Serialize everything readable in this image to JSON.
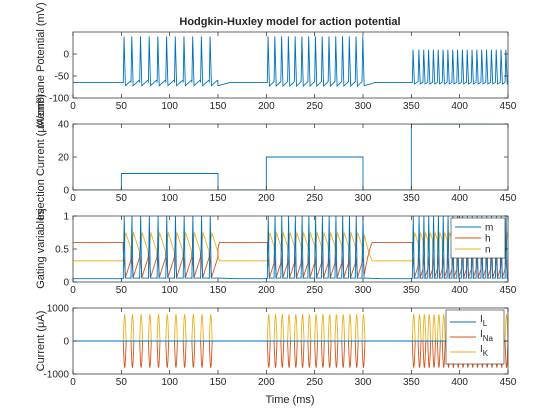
{
  "figure": {
    "title": "Hodgkin-Huxley model for action potential",
    "xlabel": "Time (ms)"
  },
  "colors": {
    "blue": "#0072BD",
    "orange": "#D95319",
    "yellow": "#EDB120",
    "axis": "#262626"
  },
  "chart_data": [
    {
      "type": "line",
      "panel": "membrane-potential",
      "ylabel": "Membrane Potential (mV)",
      "xlim": [
        0,
        450
      ],
      "ylim": [
        -100,
        50
      ],
      "xticks": [
        0,
        50,
        100,
        150,
        200,
        250,
        300,
        350,
        400,
        450
      ],
      "yticks": [
        -100,
        -50,
        0
      ],
      "grid": false,
      "rest_mV": -65,
      "peak_mV": 40,
      "series": [
        {
          "color": "blue",
          "stimulus_blocks": [
            {
              "start": 50,
              "end": 150,
              "spike_times": [
                52,
                60,
                69,
                78,
                87,
                96,
                105,
                114,
                123,
                132,
                141
              ],
              "trough_mV": -72
            },
            {
              "start": 200,
              "end": 300,
              "spike_times": [
                201,
                208,
                215,
                222,
                229,
                236,
                243,
                250,
                257,
                264,
                271,
                278,
                285,
                292,
                299
              ],
              "trough_mV": -73
            },
            {
              "start": 350,
              "end": 450,
              "spike_times": [
                351,
                357,
                362,
                367,
                372,
                377,
                382,
                387,
                392,
                397,
                402,
                407,
                412,
                417,
                422,
                427,
                432,
                437,
                442,
                447
              ],
              "trough_mV": -68,
              "peak_mV": 10
            }
          ]
        }
      ]
    },
    {
      "type": "line",
      "panel": "injection-current",
      "ylabel": "Injection Current (μA/cm²)",
      "xlim": [
        0,
        450
      ],
      "ylim": [
        0,
        40
      ],
      "xticks": [
        0,
        50,
        100,
        150,
        200,
        250,
        300,
        350,
        400,
        450
      ],
      "yticks": [
        0,
        20,
        40
      ],
      "grid": false,
      "series": [
        {
          "color": "blue",
          "x": [
            0,
            50,
            50,
            150,
            150,
            200,
            200,
            300,
            300,
            350,
            350,
            450
          ],
          "y": [
            0,
            0,
            10,
            10,
            0,
            0,
            20,
            20,
            0,
            0,
            40,
            40
          ]
        }
      ]
    },
    {
      "type": "line",
      "panel": "gating-variables",
      "ylabel": "Gating variables",
      "xlim": [
        0,
        450
      ],
      "ylim": [
        0,
        1
      ],
      "xticks": [
        0,
        50,
        100,
        150,
        200,
        250,
        300,
        350,
        400,
        450
      ],
      "yticks": [
        0,
        0.5,
        1
      ],
      "grid": false,
      "legend": "top-right",
      "resting_values": {
        "m": 0.05,
        "h": 0.6,
        "n": 0.32
      },
      "series": [
        {
          "name": "m",
          "color": "blue"
        },
        {
          "name": "h",
          "color": "orange"
        },
        {
          "name": "n",
          "color": "yellow"
        }
      ]
    },
    {
      "type": "line",
      "panel": "ionic-currents",
      "ylabel": "Current (μA)",
      "xlim": [
        0,
        450
      ],
      "ylim": [
        -1000,
        1000
      ],
      "xticks": [
        0,
        50,
        100,
        150,
        200,
        250,
        300,
        350,
        400,
        450
      ],
      "yticks": [
        -1000,
        0,
        1000
      ],
      "grid": false,
      "legend": "top-right",
      "series": [
        {
          "name": "I_L",
          "label_main": "I",
          "label_sub": "L",
          "color": "blue",
          "peak": 10
        },
        {
          "name": "I_Na",
          "label_main": "I",
          "label_sub": "Na",
          "color": "orange",
          "peak": -800
        },
        {
          "name": "I_K",
          "label_main": "I",
          "label_sub": "K",
          "color": "yellow",
          "peak": 800
        }
      ]
    }
  ]
}
